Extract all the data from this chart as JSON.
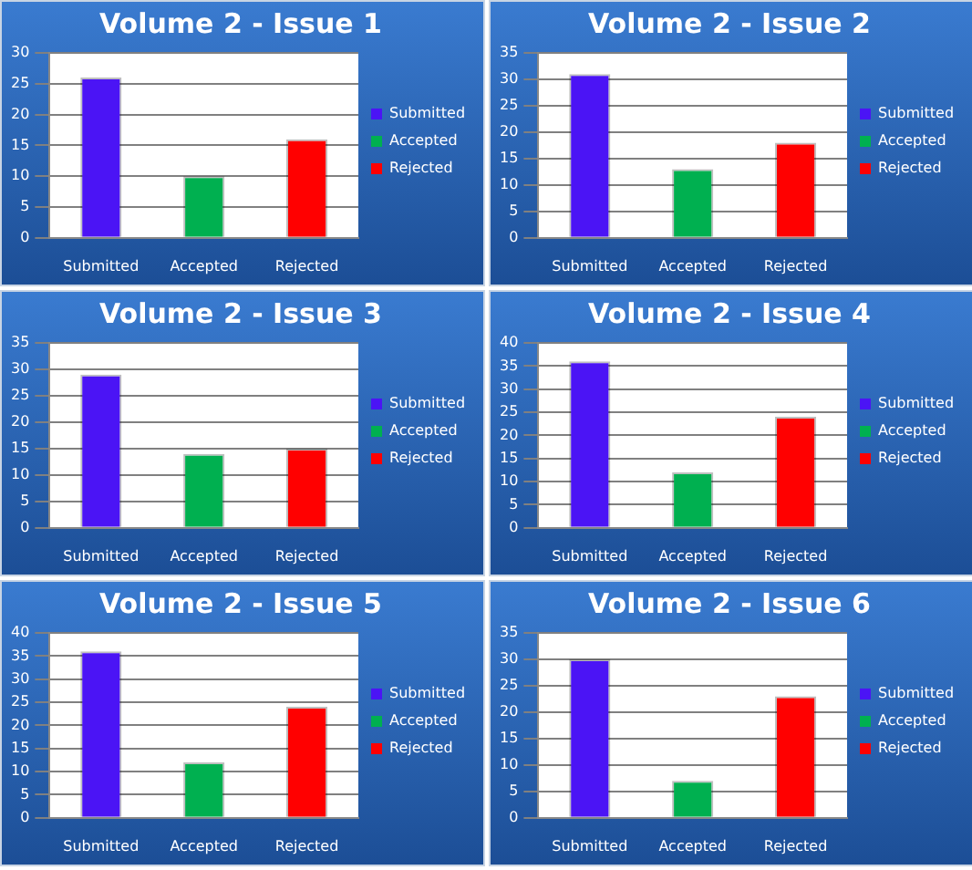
{
  "chart_data": [
    {
      "type": "bar",
      "title": "Volume 2 - Issue 1",
      "categories": [
        "Submitted",
        "Accepted",
        "Rejected"
      ],
      "series": [
        {
          "name": "Submitted",
          "color": "#4b14f5",
          "values": [
            26,
            null,
            null
          ]
        },
        {
          "name": "Accepted",
          "color": "#00b050",
          "values": [
            null,
            10,
            null
          ]
        },
        {
          "name": "Rejected",
          "color": "#ff0000",
          "values": [
            null,
            null,
            16
          ]
        }
      ],
      "ylim": [
        0,
        30
      ],
      "yticks": [
        0,
        5,
        10,
        15,
        20,
        25,
        30
      ],
      "grid": "y",
      "legend": "right"
    },
    {
      "type": "bar",
      "title": "Volume 2 - Issue 2",
      "categories": [
        "Submitted",
        "Accepted",
        "Rejected"
      ],
      "series": [
        {
          "name": "Submitted",
          "color": "#4b14f5",
          "values": [
            31,
            null,
            null
          ]
        },
        {
          "name": "Accepted",
          "color": "#00b050",
          "values": [
            null,
            13,
            null
          ]
        },
        {
          "name": "Rejected",
          "color": "#ff0000",
          "values": [
            null,
            null,
            18
          ]
        }
      ],
      "ylim": [
        0,
        35
      ],
      "yticks": [
        0,
        5,
        10,
        15,
        20,
        25,
        30,
        35
      ],
      "grid": "y",
      "legend": "right"
    },
    {
      "type": "bar",
      "title": "Volume 2 - Issue 3",
      "categories": [
        "Submitted",
        "Accepted",
        "Rejected"
      ],
      "series": [
        {
          "name": "Submitted",
          "color": "#4b14f5",
          "values": [
            29,
            null,
            null
          ]
        },
        {
          "name": "Accepted",
          "color": "#00b050",
          "values": [
            null,
            14,
            null
          ]
        },
        {
          "name": "Rejected",
          "color": "#ff0000",
          "values": [
            null,
            null,
            15
          ]
        }
      ],
      "ylim": [
        0,
        35
      ],
      "yticks": [
        0,
        5,
        10,
        15,
        20,
        25,
        30,
        35
      ],
      "grid": "y",
      "legend": "right"
    },
    {
      "type": "bar",
      "title": "Volume 2 - Issue 4",
      "categories": [
        "Submitted",
        "Accepted",
        "Rejected"
      ],
      "series": [
        {
          "name": "Submitted",
          "color": "#4b14f5",
          "values": [
            36,
            null,
            null
          ]
        },
        {
          "name": "Accepted",
          "color": "#00b050",
          "values": [
            null,
            12,
            null
          ]
        },
        {
          "name": "Rejected",
          "color": "#ff0000",
          "values": [
            null,
            null,
            24
          ]
        }
      ],
      "ylim": [
        0,
        40
      ],
      "yticks": [
        0,
        5,
        10,
        15,
        20,
        25,
        30,
        35,
        40
      ],
      "grid": "y",
      "legend": "right"
    },
    {
      "type": "bar",
      "title": "Volume 2 - Issue 5",
      "categories": [
        "Submitted",
        "Accepted",
        "Rejected"
      ],
      "series": [
        {
          "name": "Submitted",
          "color": "#4b14f5",
          "values": [
            36,
            null,
            null
          ]
        },
        {
          "name": "Accepted",
          "color": "#00b050",
          "values": [
            null,
            12,
            null
          ]
        },
        {
          "name": "Rejected",
          "color": "#ff0000",
          "values": [
            null,
            null,
            24
          ]
        }
      ],
      "ylim": [
        0,
        40
      ],
      "yticks": [
        0,
        5,
        10,
        15,
        20,
        25,
        30,
        35,
        40
      ],
      "grid": "y",
      "legend": "right"
    },
    {
      "type": "bar",
      "title": "Volume 2 - Issue 6",
      "categories": [
        "Submitted",
        "Accepted",
        "Rejected"
      ],
      "series": [
        {
          "name": "Submitted",
          "color": "#4b14f5",
          "values": [
            30,
            null,
            null
          ]
        },
        {
          "name": "Accepted",
          "color": "#00b050",
          "values": [
            null,
            7,
            null
          ]
        },
        {
          "name": "Rejected",
          "color": "#ff0000",
          "values": [
            null,
            null,
            23
          ]
        }
      ],
      "ylim": [
        0,
        35
      ],
      "yticks": [
        0,
        5,
        10,
        15,
        20,
        25,
        30,
        35
      ],
      "grid": "y",
      "legend": "right"
    }
  ]
}
